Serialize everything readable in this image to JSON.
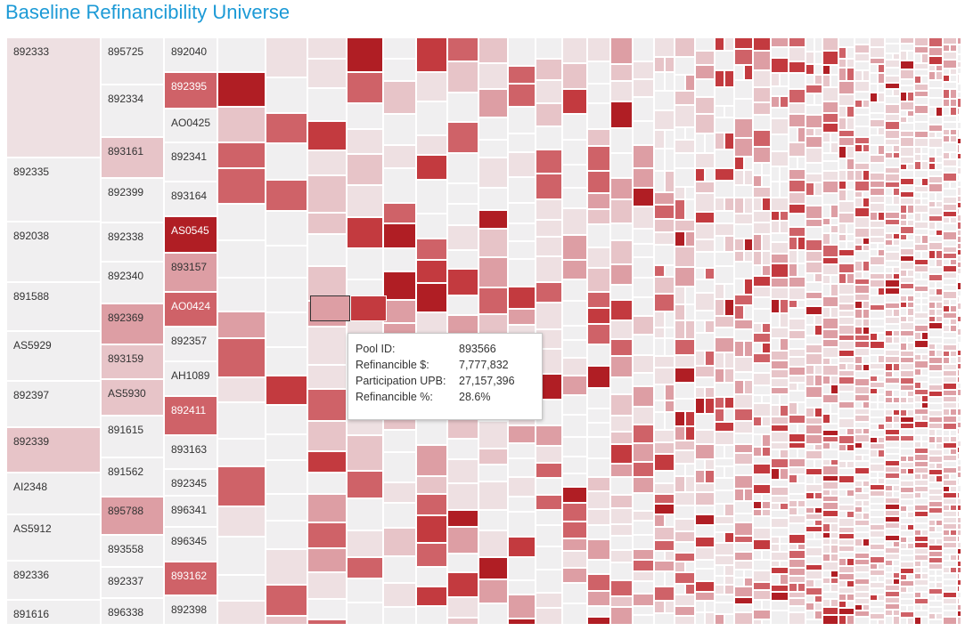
{
  "title": "Baseline Refinancibility Universe",
  "colors": {
    "title": "#1c9ad6",
    "scale": [
      "#f0eff0",
      "#eee0e2",
      "#e7c4c8",
      "#dd9ea4",
      "#cf6268",
      "#c33a3f",
      "#b01e24"
    ]
  },
  "tooltip": {
    "rows": [
      {
        "label": "Pool ID:",
        "value": "893566"
      },
      {
        "label": "Refinancible $:",
        "value": "7,777,832"
      },
      {
        "label": "Participation UPB:",
        "value": "27,157,396"
      },
      {
        "label": "Refinancible %:",
        "value": "28.6%"
      }
    ]
  },
  "chart_data": {
    "type": "heatmap",
    "subtype": "treemap",
    "color_measure": "Refinancible %",
    "size_measure": "Participation UPB",
    "labeled_pools": [
      {
        "id": "892333",
        "level": 1
      },
      {
        "id": "892335",
        "level": 0
      },
      {
        "id": "892038",
        "level": 0
      },
      {
        "id": "891588",
        "level": 0
      },
      {
        "id": "AS5929",
        "level": 0
      },
      {
        "id": "892397",
        "level": 0
      },
      {
        "id": "892339",
        "level": 2
      },
      {
        "id": "AI2348",
        "level": 0
      },
      {
        "id": "AS5912",
        "level": 0
      },
      {
        "id": "892336",
        "level": 0
      },
      {
        "id": "891616",
        "level": 0
      },
      {
        "id": "895725",
        "level": 0
      },
      {
        "id": "892334",
        "level": 0
      },
      {
        "id": "893161",
        "level": 2
      },
      {
        "id": "892399",
        "level": 0
      },
      {
        "id": "892338",
        "level": 0
      },
      {
        "id": "892340",
        "level": 0
      },
      {
        "id": "892369",
        "level": 3
      },
      {
        "id": "893159",
        "level": 2
      },
      {
        "id": "AS5930",
        "level": 2
      },
      {
        "id": "891615",
        "level": 0
      },
      {
        "id": "891562",
        "level": 0
      },
      {
        "id": "895788",
        "level": 3
      },
      {
        "id": "893558",
        "level": 0
      },
      {
        "id": "892337",
        "level": 0
      },
      {
        "id": "896338",
        "level": 0
      },
      {
        "id": "892040",
        "level": 0
      },
      {
        "id": "892395",
        "level": 4
      },
      {
        "id": "AO0425",
        "level": 0
      },
      {
        "id": "892341",
        "level": 0
      },
      {
        "id": "893164",
        "level": 0
      },
      {
        "id": "AS0545",
        "level": 6
      },
      {
        "id": "893157",
        "level": 3
      },
      {
        "id": "AO0424",
        "level": 4
      },
      {
        "id": "892357",
        "level": 0
      },
      {
        "id": "AH1089",
        "level": 0
      },
      {
        "id": "892411",
        "level": 4
      },
      {
        "id": "893163",
        "level": 0
      },
      {
        "id": "892345",
        "level": 0
      },
      {
        "id": "896341",
        "level": 0
      },
      {
        "id": "896345",
        "level": 0
      },
      {
        "id": "893162",
        "level": 4
      },
      {
        "id": "892398",
        "level": 0
      }
    ],
    "highlighted_pool": {
      "id": "893566",
      "refinancible": 7777832,
      "participation_upb": 27157396,
      "refinancible_pct": 28.6
    }
  }
}
